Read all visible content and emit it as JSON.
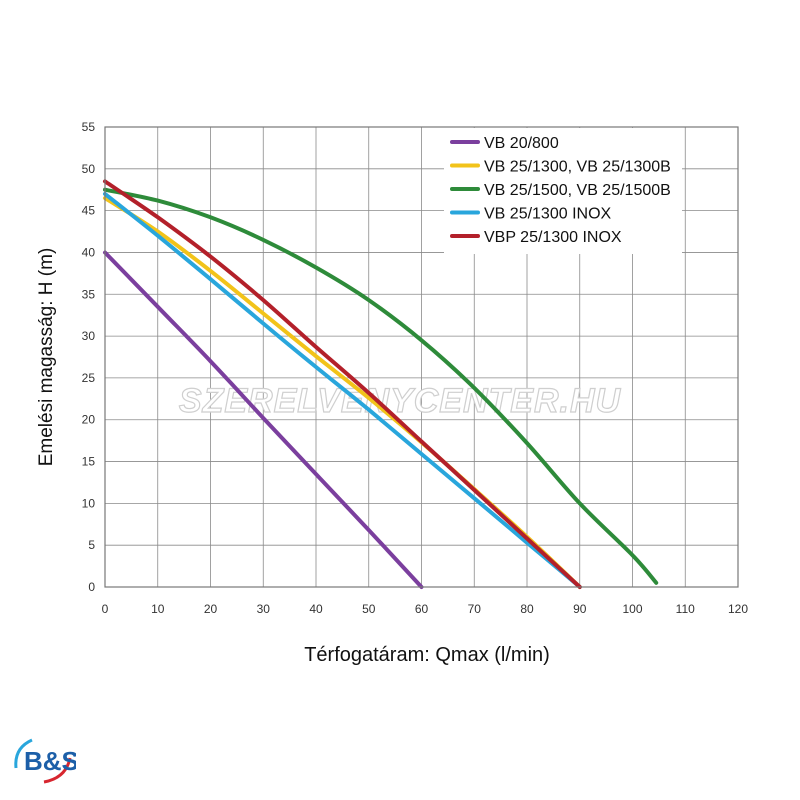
{
  "chart_data": {
    "type": "line",
    "xlabel": "Térfogatáram: Qmax (l/min)",
    "ylabel": "Emelési magasság: H (m)",
    "xlim": [
      0,
      120
    ],
    "ylim": [
      0,
      55
    ],
    "xticks": [
      0,
      10,
      20,
      30,
      40,
      50,
      60,
      70,
      80,
      90,
      100,
      110,
      120
    ],
    "yticks": [
      0,
      5,
      10,
      15,
      20,
      25,
      30,
      35,
      40,
      45,
      50,
      55
    ],
    "grid": true,
    "legend_position": "top-right",
    "series": [
      {
        "name": "VB 20/800",
        "color": "#7b3f9e",
        "x": [
          0,
          10,
          20,
          30,
          40,
          50,
          60
        ],
        "y": [
          40,
          33.5,
          27,
          20.2,
          13.5,
          6.8,
          0
        ]
      },
      {
        "name": "VB 25/1300, VB 25/1300B",
        "color": "#f2c31a",
        "x": [
          0,
          10,
          20,
          30,
          40,
          50,
          60,
          70,
          80,
          90
        ],
        "y": [
          46.5,
          42.5,
          37.8,
          32.7,
          27.6,
          22.6,
          17.3,
          11.7,
          6.0,
          0
        ]
      },
      {
        "name": "VB 25/1500, VB 25/1500B",
        "color": "#2e8b3a",
        "x": [
          0,
          10,
          20,
          30,
          40,
          50,
          60,
          70,
          80,
          90,
          100,
          104.5
        ],
        "y": [
          47.5,
          46.2,
          44.2,
          41.5,
          38.2,
          34.3,
          29.5,
          23.8,
          17.2,
          10.0,
          3.8,
          0.5
        ]
      },
      {
        "name": "VB 25/1300 INOX",
        "color": "#29a6dc",
        "x": [
          0,
          10,
          20,
          30,
          40,
          50,
          60,
          70,
          80,
          90
        ],
        "y": [
          47,
          42,
          36.8,
          31.5,
          26.3,
          21.2,
          15.9,
          10.6,
          5.3,
          0
        ]
      },
      {
        "name": "VBP 25/1300 INOX",
        "color": "#b3202a",
        "x": [
          0,
          10,
          20,
          30,
          40,
          50,
          60,
          70,
          80,
          90
        ],
        "y": [
          48.5,
          44.2,
          39.5,
          34.3,
          28.7,
          23.2,
          17.4,
          11.6,
          5.8,
          0
        ]
      }
    ]
  },
  "watermark_text": "SZERELVENYCENTER.HU",
  "logo_text": "B&S"
}
